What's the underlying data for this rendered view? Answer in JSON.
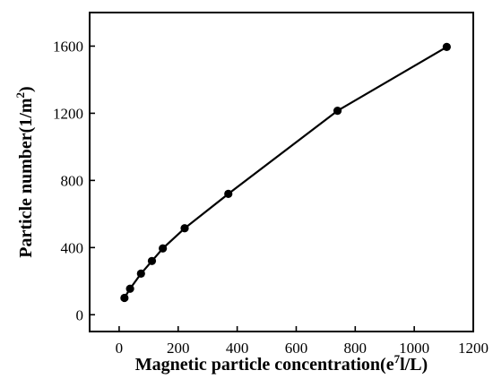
{
  "chart_data": {
    "type": "line",
    "title": "",
    "xlabel": "Magnetic particle concentration(e⁷l/L)",
    "xlabel_parts": {
      "main": "Magnetic particle concentration(e",
      "sup": "7",
      "tail": "l/L)"
    },
    "ylabel": "Particle number(1/m²)",
    "ylabel_parts": {
      "main": "Particle number(1/m",
      "sup": "2",
      "tail": ")"
    },
    "xlim": [
      -100,
      1200
    ],
    "ylim": [
      -100,
      1800
    ],
    "xticks": [
      0,
      200,
      400,
      600,
      800,
      1000,
      1200
    ],
    "yticks": [
      0,
      400,
      800,
      1200,
      1600
    ],
    "grid": false,
    "series": [
      {
        "x": [
          18,
          37,
          74,
          111,
          148,
          222,
          370,
          740,
          1110
        ],
        "y": [
          100,
          155,
          245,
          320,
          395,
          515,
          720,
          1215,
          1595
        ]
      }
    ],
    "colors": {
      "line": "#000000",
      "marker": "#000000"
    }
  }
}
